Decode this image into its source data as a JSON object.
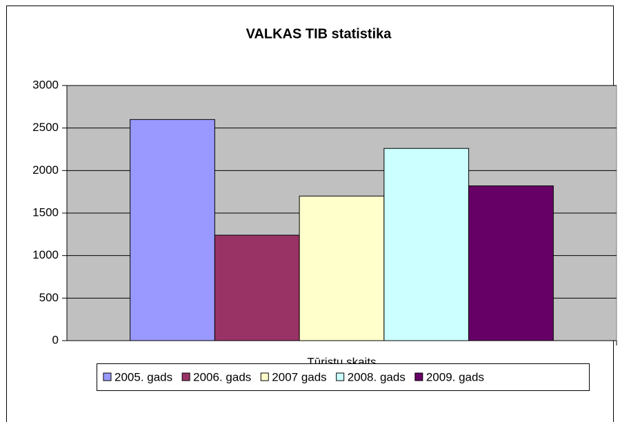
{
  "chart_data": {
    "type": "bar",
    "title": "VALKAS TIB statistika",
    "categories": [
      "Tūristu skaits"
    ],
    "series": [
      {
        "name": "2005. gads",
        "color": "#9999ff",
        "values": [
          2600
        ]
      },
      {
        "name": "2006. gads",
        "color": "#993366",
        "values": [
          1240
        ]
      },
      {
        "name": "2007 gads",
        "color": "#ffffcc",
        "values": [
          1700
        ]
      },
      {
        "name": "2008. gads",
        "color": "#ccffff",
        "values": [
          2260
        ]
      },
      {
        "name": "2009. gads",
        "color": "#660066",
        "values": [
          1820
        ]
      }
    ],
    "ylim": [
      0,
      3000
    ],
    "yticks": [
      0,
      500,
      1000,
      1500,
      2000,
      2500,
      3000
    ],
    "grid": true,
    "legend": "bottom",
    "plot_background": "#c0c0c0"
  }
}
